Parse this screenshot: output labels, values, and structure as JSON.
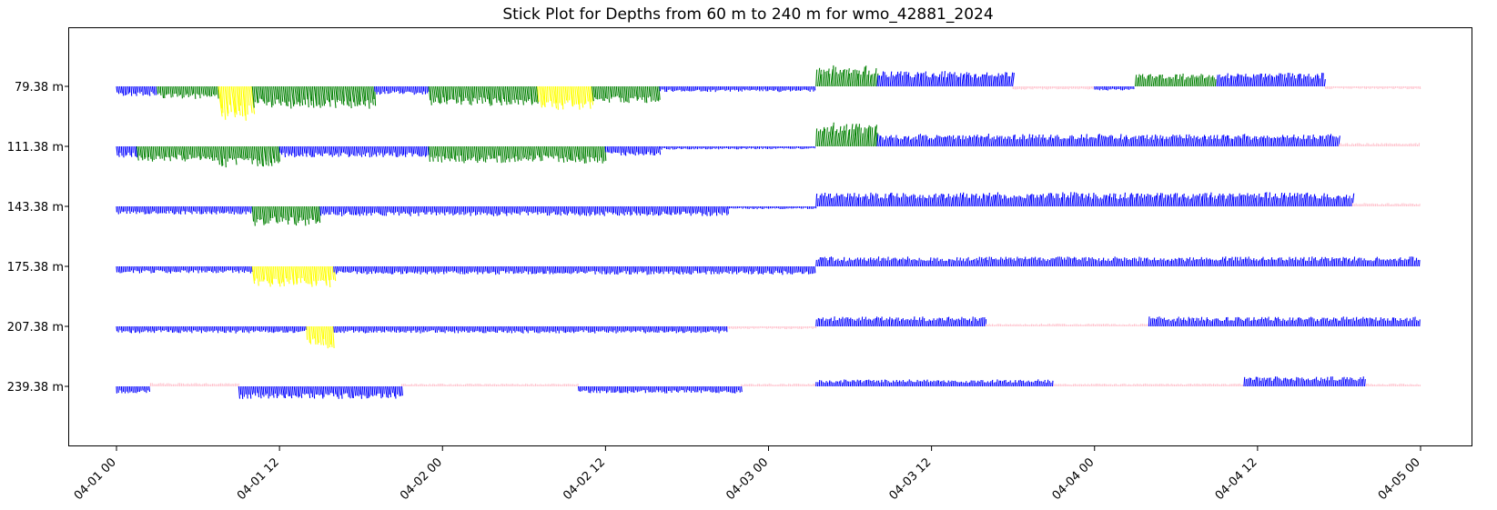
{
  "chart_data": {
    "type": "stick",
    "title": "Stick Plot for Depths from 60 m to 240 m for wmo_42881_2024",
    "xlabel": "",
    "ylabel": "",
    "x_tick_labels": [
      "04-01 00",
      "04-01 12",
      "04-02 00",
      "04-02 12",
      "04-03 00",
      "04-03 12",
      "04-04 00",
      "04-04 12",
      "04-05 00"
    ],
    "x_range_hours": [
      0,
      96
    ],
    "depth_labels": [
      "79.38 m",
      "111.38 m",
      "143.38 m",
      "175.38 m",
      "207.38 m",
      "239.38 m"
    ],
    "color_legend_implied": {
      "pink": "#ffc0cb",
      "blue": "#0000ff",
      "green": "#008000",
      "yellow": "#ffff00"
    },
    "series": [
      {
        "depth": "79.38 m",
        "segments": [
          {
            "start_h": 0,
            "end_h": 3,
            "color": "blue",
            "dir": "down",
            "mag": 0.35
          },
          {
            "start_h": 3,
            "end_h": 7.5,
            "color": "green",
            "dir": "down",
            "mag": 0.45
          },
          {
            "start_h": 7.5,
            "end_h": 10,
            "color": "yellow",
            "dir": "down",
            "mag": 1.2
          },
          {
            "start_h": 10,
            "end_h": 19,
            "color": "green",
            "dir": "down",
            "mag": 0.8
          },
          {
            "start_h": 19,
            "end_h": 23,
            "color": "blue",
            "dir": "down",
            "mag": 0.3
          },
          {
            "start_h": 23,
            "end_h": 31,
            "color": "green",
            "dir": "down",
            "mag": 0.7
          },
          {
            "start_h": 31,
            "end_h": 35,
            "color": "yellow",
            "dir": "down",
            "mag": 0.85
          },
          {
            "start_h": 35,
            "end_h": 40,
            "color": "green",
            "dir": "down",
            "mag": 0.6
          },
          {
            "start_h": 40,
            "end_h": 51.5,
            "color": "blue",
            "dir": "down",
            "mag": 0.2
          },
          {
            "start_h": 51.5,
            "end_h": 56,
            "color": "green",
            "dir": "up",
            "mag": 0.75
          },
          {
            "start_h": 56,
            "end_h": 66,
            "color": "blue",
            "dir": "up",
            "mag": 0.55
          },
          {
            "start_h": 66,
            "end_h": 72,
            "color": "pink",
            "dir": "down",
            "mag": 0.12
          },
          {
            "start_h": 72,
            "end_h": 75,
            "color": "blue",
            "dir": "down",
            "mag": 0.15
          },
          {
            "start_h": 75,
            "end_h": 81,
            "color": "green",
            "dir": "up",
            "mag": 0.45
          },
          {
            "start_h": 81,
            "end_h": 89,
            "color": "blue",
            "dir": "up",
            "mag": 0.5
          },
          {
            "start_h": 89,
            "end_h": 96,
            "color": "pink",
            "dir": "down",
            "mag": 0.1
          }
        ]
      },
      {
        "depth": "111.38 m",
        "segments": [
          {
            "start_h": 0,
            "end_h": 1.5,
            "color": "blue",
            "dir": "down",
            "mag": 0.4
          },
          {
            "start_h": 1.5,
            "end_h": 7.5,
            "color": "green",
            "dir": "down",
            "mag": 0.55
          },
          {
            "start_h": 7.5,
            "end_h": 12,
            "color": "green",
            "dir": "down",
            "mag": 0.75
          },
          {
            "start_h": 12,
            "end_h": 23,
            "color": "blue",
            "dir": "down",
            "mag": 0.4
          },
          {
            "start_h": 23,
            "end_h": 36,
            "color": "green",
            "dir": "down",
            "mag": 0.6
          },
          {
            "start_h": 36,
            "end_h": 40,
            "color": "blue",
            "dir": "down",
            "mag": 0.35
          },
          {
            "start_h": 40,
            "end_h": 46,
            "color": "blue",
            "dir": "down",
            "mag": 0.12
          },
          {
            "start_h": 46,
            "end_h": 51.5,
            "color": "blue",
            "dir": "down",
            "mag": 0.1
          },
          {
            "start_h": 51.5,
            "end_h": 56,
            "color": "green",
            "dir": "up",
            "mag": 0.85
          },
          {
            "start_h": 56,
            "end_h": 90,
            "color": "blue",
            "dir": "up",
            "mag": 0.45
          },
          {
            "start_h": 90,
            "end_h": 96,
            "color": "pink",
            "dir": "up",
            "mag": 0.12
          }
        ]
      },
      {
        "depth": "143.38 m",
        "segments": [
          {
            "start_h": 0,
            "end_h": 10,
            "color": "blue",
            "dir": "down",
            "mag": 0.3
          },
          {
            "start_h": 10,
            "end_h": 15,
            "color": "green",
            "dir": "down",
            "mag": 0.7
          },
          {
            "start_h": 15,
            "end_h": 45,
            "color": "blue",
            "dir": "down",
            "mag": 0.35
          },
          {
            "start_h": 45,
            "end_h": 51.5,
            "color": "blue",
            "dir": "down",
            "mag": 0.1
          },
          {
            "start_h": 51.5,
            "end_h": 91,
            "color": "blue",
            "dir": "up",
            "mag": 0.5
          },
          {
            "start_h": 91,
            "end_h": 96,
            "color": "pink",
            "dir": "up",
            "mag": 0.12
          }
        ]
      },
      {
        "depth": "175.38 m",
        "segments": [
          {
            "start_h": 0,
            "end_h": 10,
            "color": "blue",
            "dir": "down",
            "mag": 0.25
          },
          {
            "start_h": 10,
            "end_h": 16,
            "color": "yellow",
            "dir": "down",
            "mag": 0.75
          },
          {
            "start_h": 16,
            "end_h": 51.5,
            "color": "blue",
            "dir": "down",
            "mag": 0.3
          },
          {
            "start_h": 51.5,
            "end_h": 96,
            "color": "blue",
            "dir": "up",
            "mag": 0.35
          }
        ]
      },
      {
        "depth": "207.38 m",
        "segments": [
          {
            "start_h": 0,
            "end_h": 14,
            "color": "blue",
            "dir": "down",
            "mag": 0.25
          },
          {
            "start_h": 14,
            "end_h": 16,
            "color": "yellow",
            "dir": "down",
            "mag": 0.8
          },
          {
            "start_h": 16,
            "end_h": 45,
            "color": "blue",
            "dir": "down",
            "mag": 0.25
          },
          {
            "start_h": 45,
            "end_h": 51.5,
            "color": "pink",
            "dir": "down",
            "mag": 0.1
          },
          {
            "start_h": 51.5,
            "end_h": 64,
            "color": "blue",
            "dir": "up",
            "mag": 0.35
          },
          {
            "start_h": 64,
            "end_h": 76,
            "color": "pink",
            "dir": "up",
            "mag": 0.1
          },
          {
            "start_h": 76,
            "end_h": 96,
            "color": "blue",
            "dir": "up",
            "mag": 0.35
          }
        ]
      },
      {
        "depth": "239.38 m",
        "segments": [
          {
            "start_h": 0,
            "end_h": 2.5,
            "color": "blue",
            "dir": "down",
            "mag": 0.25
          },
          {
            "start_h": 2.5,
            "end_h": 9,
            "color": "pink",
            "dir": "up",
            "mag": 0.12
          },
          {
            "start_h": 9,
            "end_h": 21,
            "color": "blue",
            "dir": "down",
            "mag": 0.45
          },
          {
            "start_h": 21,
            "end_h": 34,
            "color": "pink",
            "dir": "up",
            "mag": 0.1
          },
          {
            "start_h": 34,
            "end_h": 46,
            "color": "blue",
            "dir": "down",
            "mag": 0.25
          },
          {
            "start_h": 46,
            "end_h": 51.5,
            "color": "pink",
            "dir": "up",
            "mag": 0.1
          },
          {
            "start_h": 51.5,
            "end_h": 69,
            "color": "blue",
            "dir": "up",
            "mag": 0.25
          },
          {
            "start_h": 69,
            "end_h": 83,
            "color": "pink",
            "dir": "up",
            "mag": 0.1
          },
          {
            "start_h": 83,
            "end_h": 92,
            "color": "blue",
            "dir": "up",
            "mag": 0.35
          },
          {
            "start_h": 92,
            "end_h": 96,
            "color": "pink",
            "dir": "up",
            "mag": 0.1
          }
        ]
      }
    ],
    "grid": false,
    "legend": "none"
  }
}
